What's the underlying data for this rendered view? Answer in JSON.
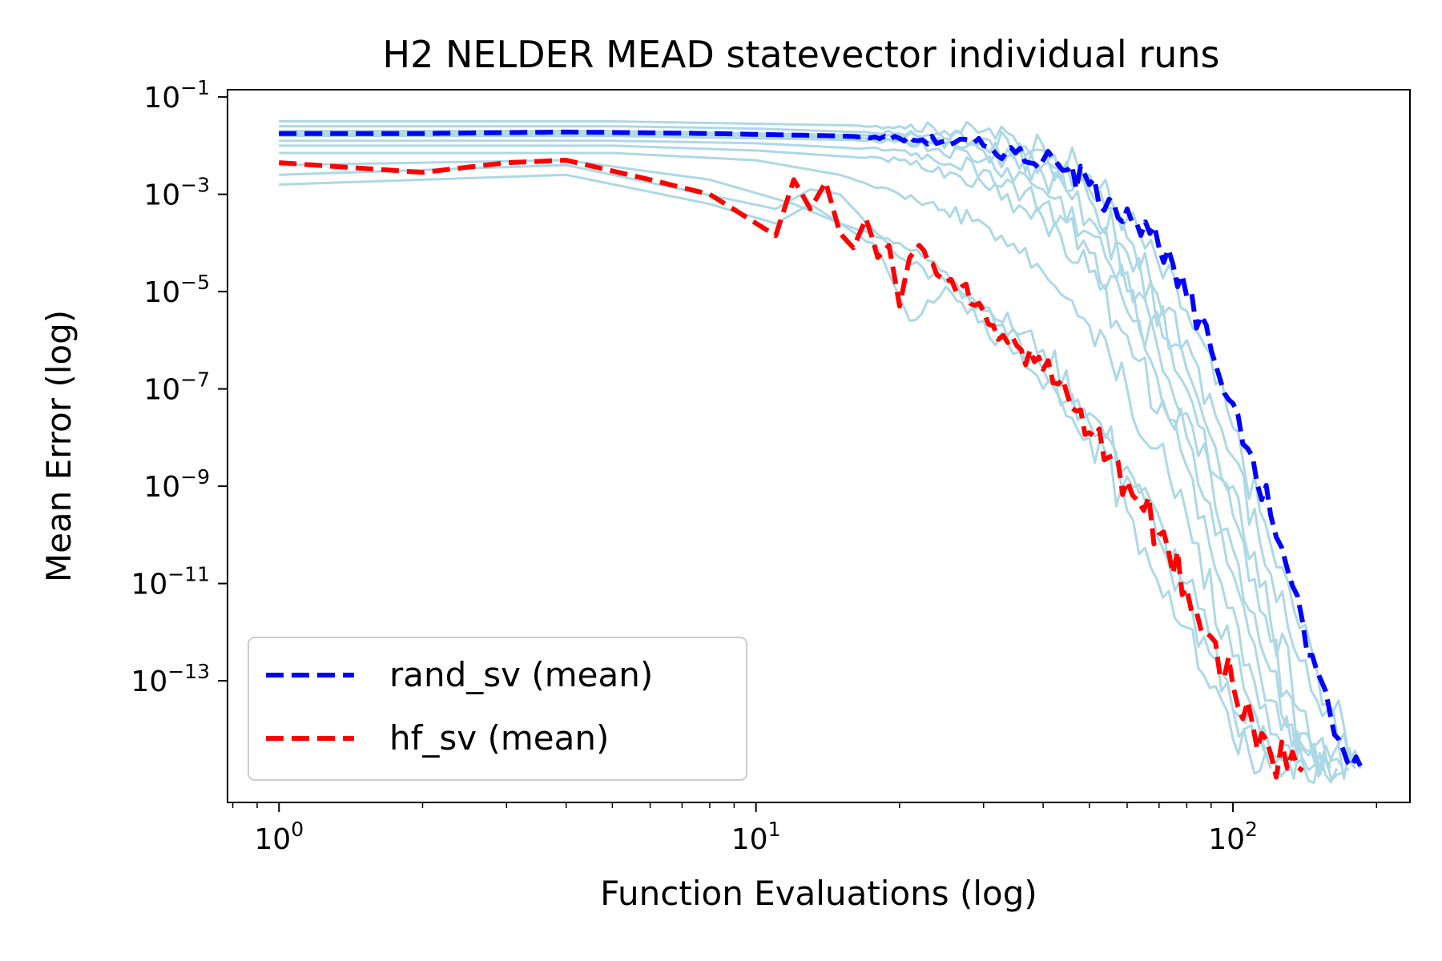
{
  "chart_data": {
    "type": "line",
    "title": "H2 NELDER MEAD statevector individual runs",
    "xlabel": "Function Evaluations (log)",
    "ylabel": "Mean Error (log)",
    "xscale": "log",
    "yscale": "log",
    "xlim": [
      0.78,
      235
    ],
    "ylim_log10": [
      -15.5,
      -0.85
    ],
    "x_ticks": [
      {
        "base": "10",
        "exp": "0",
        "value": 1
      },
      {
        "base": "10",
        "exp": "1",
        "value": 10
      },
      {
        "base": "10",
        "exp": "2",
        "value": 100
      }
    ],
    "y_ticks": [
      {
        "base": "10",
        "exp": "−1",
        "value": -1
      },
      {
        "base": "10",
        "exp": "−3",
        "value": -3
      },
      {
        "base": "10",
        "exp": "−5",
        "value": -5
      },
      {
        "base": "10",
        "exp": "−7",
        "value": -7
      },
      {
        "base": "10",
        "exp": "−9",
        "value": -9
      },
      {
        "base": "10",
        "exp": "−11",
        "value": -11
      },
      {
        "base": "10",
        "exp": "−13",
        "value": -13
      }
    ],
    "grid": false,
    "legend_position": "bottom-left",
    "individual_run_color": "#add8e6",
    "individual_runs": [
      {
        "x": [
          1,
          5,
          10,
          20,
          30,
          40,
          50,
          60,
          80,
          100,
          120,
          150,
          185
        ],
        "y_log10": [
          -1.5,
          -1.5,
          -1.55,
          -1.6,
          -1.7,
          -2.0,
          -2.6,
          -3.5,
          -5.4,
          -7.8,
          -10.2,
          -12.8,
          -14.8
        ]
      },
      {
        "x": [
          1,
          5,
          10,
          20,
          30,
          40,
          50,
          60,
          80,
          100,
          120,
          150,
          180
        ],
        "y_log10": [
          -1.6,
          -1.6,
          -1.65,
          -1.75,
          -1.85,
          -2.1,
          -2.9,
          -3.9,
          -6.0,
          -8.4,
          -10.8,
          -13.4,
          -14.8
        ]
      },
      {
        "x": [
          1,
          5,
          10,
          20,
          30,
          40,
          50,
          60,
          80,
          100,
          120,
          150,
          180
        ],
        "y_log10": [
          -1.7,
          -1.7,
          -1.75,
          -1.8,
          -2.0,
          -2.4,
          -3.1,
          -4.2,
          -6.6,
          -9.0,
          -11.8,
          -14.3,
          -14.8
        ]
      },
      {
        "x": [
          1,
          5,
          10,
          20,
          30,
          40,
          50,
          60,
          80,
          100,
          120,
          140,
          175
        ],
        "y_log10": [
          -1.75,
          -1.75,
          -1.8,
          -1.85,
          -2.1,
          -2.6,
          -3.5,
          -4.6,
          -7.0,
          -9.6,
          -12.2,
          -14.4,
          -14.8
        ]
      },
      {
        "x": [
          1,
          5,
          10,
          20,
          30,
          40,
          50,
          60,
          80,
          100,
          120,
          140,
          170
        ],
        "y_log10": [
          -1.8,
          -1.8,
          -1.85,
          -1.9,
          -2.3,
          -2.9,
          -3.8,
          -5.0,
          -7.5,
          -10.3,
          -12.8,
          -14.6,
          -14.8
        ]
      },
      {
        "x": [
          1,
          5,
          10,
          20,
          30,
          40,
          50,
          60,
          80,
          100,
          120,
          140,
          165
        ],
        "y_log10": [
          -1.9,
          -1.9,
          -1.95,
          -2.1,
          -2.5,
          -3.2,
          -4.2,
          -5.4,
          -8.0,
          -10.8,
          -13.4,
          -14.7,
          -14.8
        ]
      },
      {
        "x": [
          1,
          5,
          10,
          20,
          30,
          40,
          50,
          60,
          80,
          100,
          120,
          160
        ],
        "y_log10": [
          -2.0,
          -2.0,
          -2.1,
          -2.3,
          -2.8,
          -3.5,
          -4.6,
          -5.9,
          -8.6,
          -11.5,
          -14.1,
          -14.8
        ]
      },
      {
        "x": [
          1,
          5,
          10,
          15,
          20,
          30,
          40,
          50,
          60,
          80,
          100,
          120,
          150
        ],
        "y_log10": [
          -2.15,
          -2.15,
          -2.3,
          -2.6,
          -3.0,
          -3.6,
          -4.6,
          -5.7,
          -7.0,
          -9.6,
          -12.5,
          -14.5,
          -14.8
        ]
      },
      {
        "x": [
          1,
          4,
          8,
          12,
          15,
          20,
          25,
          30,
          40,
          50,
          60,
          80,
          100,
          130
        ],
        "y_log10": [
          -2.4,
          -2.3,
          -2.7,
          -3.2,
          -3.6,
          -4.0,
          -4.6,
          -5.3,
          -6.2,
          -7.5,
          -8.6,
          -11.0,
          -13.6,
          -14.8
        ]
      },
      {
        "x": [
          1,
          4,
          7,
          11,
          13,
          15,
          20,
          25,
          30,
          40,
          50,
          60,
          80,
          100,
          130
        ],
        "y_log10": [
          -2.6,
          -2.4,
          -2.9,
          -3.3,
          -2.9,
          -3.0,
          -4.3,
          -4.8,
          -5.4,
          -6.6,
          -7.7,
          -8.8,
          -11.3,
          -13.6,
          -14.8
        ]
      },
      {
        "x": [
          1,
          4,
          8,
          11,
          13,
          15,
          18,
          21,
          25,
          30,
          40,
          50,
          60,
          80,
          100,
          120
        ],
        "y_log10": [
          -2.8,
          -2.6,
          -3.2,
          -3.6,
          -3.2,
          -3.6,
          -4.1,
          -5.6,
          -4.9,
          -5.6,
          -7.0,
          -8.0,
          -9.5,
          -11.9,
          -14.2,
          -14.8
        ]
      }
    ],
    "series": [
      {
        "name": "rand_sv (mean)",
        "color": "#0000ff",
        "x": [
          1,
          2,
          4,
          8,
          15,
          20,
          25,
          30,
          35,
          40,
          45,
          50,
          55,
          60,
          70,
          80,
          90,
          100,
          110,
          120,
          130,
          140,
          150,
          160,
          170,
          185
        ],
        "y_log10": [
          -1.75,
          -1.75,
          -1.72,
          -1.75,
          -1.8,
          -1.85,
          -1.9,
          -2.0,
          -2.15,
          -2.3,
          -2.5,
          -2.8,
          -3.1,
          -3.3,
          -4.1,
          -5.1,
          -6.2,
          -7.3,
          -8.4,
          -9.6,
          -10.7,
          -11.8,
          -12.8,
          -13.7,
          -14.4,
          -14.75
        ],
        "dashed": true
      },
      {
        "name": "hf_sv (mean)",
        "color": "#ff0000",
        "x": [
          1,
          2,
          3,
          4,
          6,
          8,
          11,
          12,
          13,
          14,
          15,
          16,
          17,
          18,
          19,
          20,
          21,
          22,
          23,
          25,
          27,
          30,
          33,
          36,
          40,
          43,
          46,
          50,
          55,
          60,
          65,
          70,
          80,
          90,
          100,
          110,
          120,
          130,
          140
        ],
        "y_log10": [
          -2.35,
          -2.55,
          -2.35,
          -2.3,
          -2.7,
          -3.0,
          -3.85,
          -2.7,
          -3.3,
          -2.75,
          -3.8,
          -4.1,
          -3.5,
          -4.3,
          -4.05,
          -5.3,
          -4.3,
          -4.05,
          -4.4,
          -4.8,
          -4.9,
          -5.4,
          -5.9,
          -6.2,
          -6.6,
          -6.9,
          -7.4,
          -7.9,
          -8.4,
          -8.9,
          -9.5,
          -10.0,
          -11.1,
          -12.1,
          -13.1,
          -13.9,
          -14.5,
          -14.8,
          -14.85
        ],
        "dashed": true
      }
    ]
  }
}
